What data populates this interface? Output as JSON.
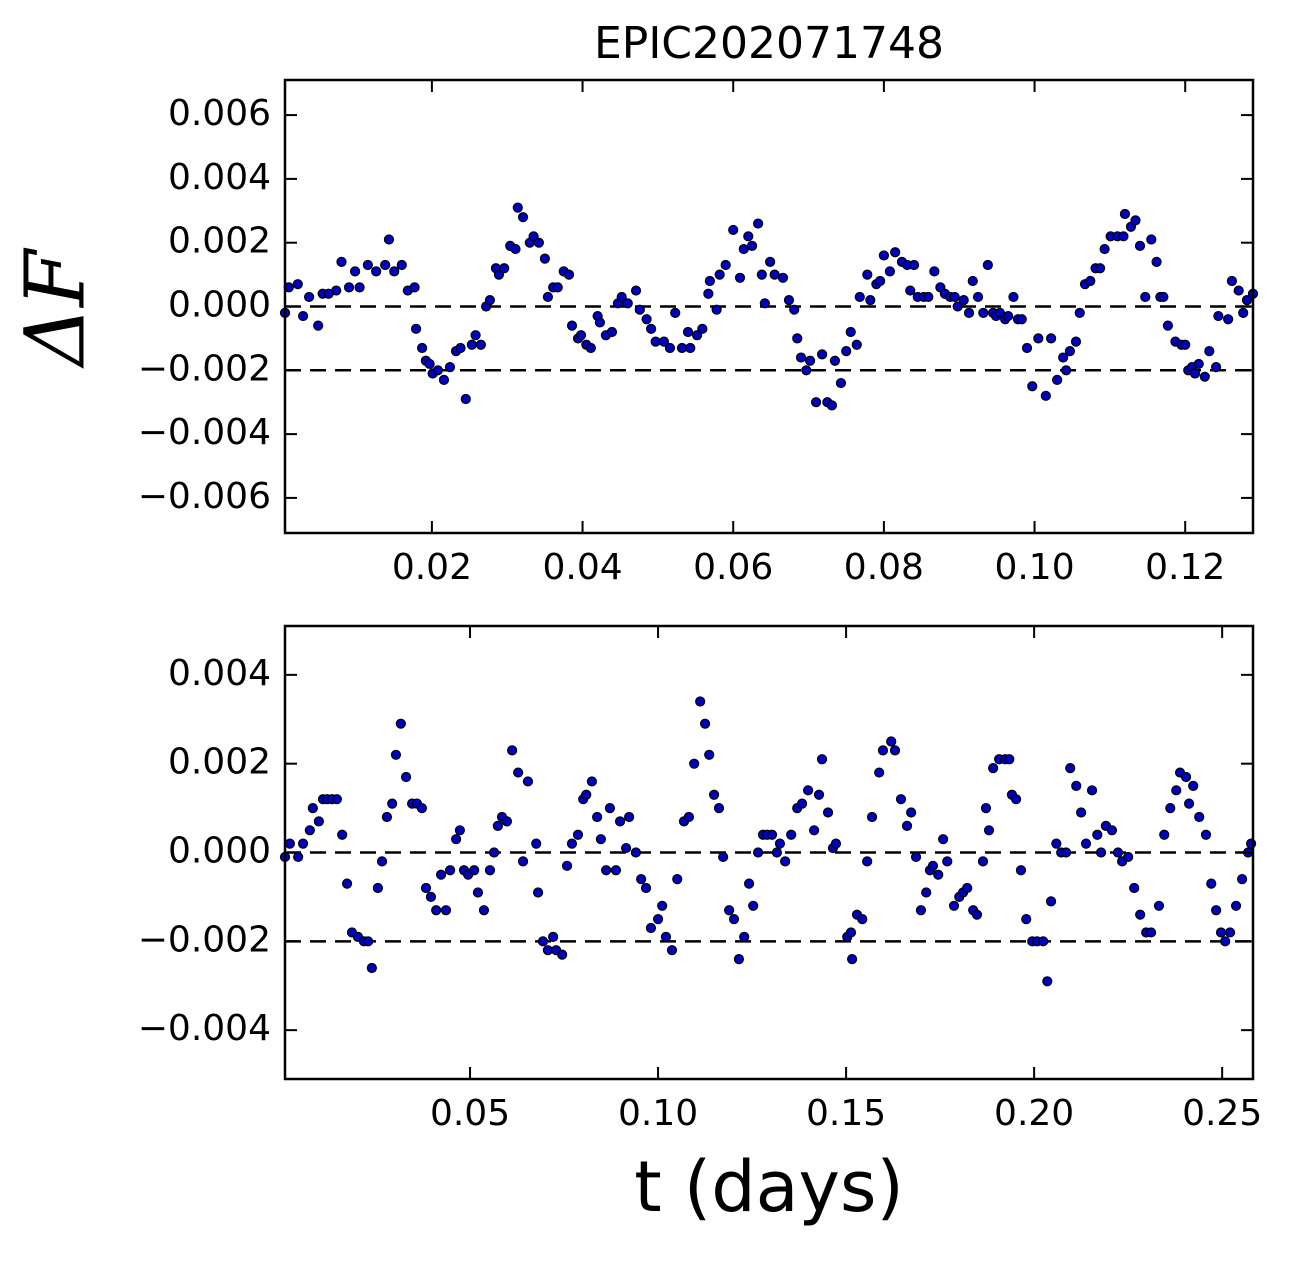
{
  "chart_data": [
    {
      "type": "scatter",
      "title": "EPIC202071748",
      "ylabel": "ΔF",
      "color": "#0000c0",
      "xlim": [
        0.0005,
        0.129
      ],
      "ylim": [
        -0.0071,
        0.0071
      ],
      "xticks": [
        0.02,
        0.04,
        0.06,
        {
          "value": 0.1,
          "label": "0.10"
        },
        0.12,
        0.08
      ],
      "yticks": [
        {
          "value": -0.006,
          "label": "−0.006"
        },
        {
          "value": -0.004,
          "label": "−0.004"
        },
        {
          "value": -0.002,
          "label": "−0.002"
        },
        {
          "value": 0,
          "label": "0.000"
        },
        0.002,
        0.004,
        0.006
      ],
      "reference_lines": [
        0,
        -0.002
      ],
      "x": [
        0.0005,
        0.001,
        0.0022,
        0.0029,
        0.0037,
        0.0049,
        0.0055,
        0.0063,
        0.0073,
        0.008,
        0.009,
        0.0098,
        0.0104,
        0.0115,
        0.0126,
        0.0138,
        0.0143,
        0.015,
        0.016,
        0.0168,
        0.0177,
        0.0179,
        0.0187,
        0.0192,
        0.0197,
        0.0201,
        0.0208,
        0.0216,
        0.0224,
        0.0232,
        0.0238,
        0.0245,
        0.0253,
        0.0258,
        0.0265,
        0.0272,
        0.0277,
        0.0285,
        0.0289,
        0.0296,
        0.0304,
        0.0311,
        0.0314,
        0.0321,
        0.033,
        0.0335,
        0.0342,
        0.035,
        0.0354,
        0.0361,
        0.0367,
        0.0375,
        0.0382,
        0.0386,
        0.0394,
        0.0398,
        0.0405,
        0.0411,
        0.042,
        0.0423,
        0.0431,
        0.0439,
        0.0447,
        0.0452,
        0.046,
        0.0471,
        0.0476,
        0.0485,
        0.0491,
        0.0497,
        0.0508,
        0.0516,
        0.0523,
        0.0532,
        0.054,
        0.0543,
        0.0552,
        0.0559,
        0.0567,
        0.0569,
        0.0578,
        0.0582,
        0.059,
        0.06,
        0.0609,
        0.0614,
        0.062,
        0.0625,
        0.0633,
        0.0638,
        0.0642,
        0.0649,
        0.0655,
        0.0666,
        0.0674,
        0.0681,
        0.0685,
        0.069,
        0.0697,
        0.0702,
        0.071,
        0.0718,
        0.0725,
        0.0731,
        0.0735,
        0.0743,
        0.075,
        0.0756,
        0.0764,
        0.0768,
        0.0778,
        0.0782,
        0.079,
        0.0795,
        0.08,
        0.0808,
        0.0815,
        0.0824,
        0.0831,
        0.0835,
        0.084,
        0.0845,
        0.0853,
        0.0859,
        0.0867,
        0.0875,
        0.0881,
        0.0888,
        0.0894,
        0.0898,
        0.0906,
        0.0913,
        0.0918,
        0.0925,
        0.0932,
        0.0938,
        0.0945,
        0.0949,
        0.0954,
        0.0961,
        0.0965,
        0.0972,
        0.0978,
        0.0983,
        0.099,
        0.0997,
        0.1005,
        0.1015,
        0.1022,
        0.103,
        0.1038,
        0.1042,
        0.1047,
        0.1055,
        0.106,
        0.1067,
        0.1074,
        0.1081,
        0.1087,
        0.1093,
        0.1101,
        0.111,
        0.1118,
        0.112,
        0.1128,
        0.1134,
        0.114,
        0.1147,
        0.1155,
        0.1162,
        0.1167,
        0.1171,
        0.1177,
        0.1187,
        0.1195,
        0.12,
        0.1204,
        0.1209,
        0.1213,
        0.1218,
        0.1226,
        0.1232,
        0.1241,
        0.1244,
        0.1257,
        0.1262,
        0.1271,
        0.1277,
        0.1282,
        0.129
      ],
      "values": [
        -0.0002,
        0.0006,
        0.0007,
        -0.0003,
        0.0003,
        -0.0006,
        0.0004,
        0.0004,
        0.0005,
        0.0014,
        0.0006,
        0.0011,
        0.0006,
        0.0013,
        0.0011,
        0.0013,
        0.0021,
        0.0011,
        0.0013,
        0.0005,
        0.0006,
        -0.0007,
        -0.0013,
        -0.0017,
        -0.0018,
        -0.0021,
        -0.002,
        -0.0023,
        -0.0019,
        -0.0014,
        -0.0013,
        -0.0029,
        -0.0012,
        -0.0009,
        -0.0012,
        0.0,
        0.0002,
        0.0012,
        0.001,
        0.0012,
        0.0019,
        0.0018,
        0.0031,
        0.0028,
        0.002,
        0.0022,
        0.002,
        0.0015,
        0.0003,
        0.0006,
        0.0006,
        0.0011,
        0.001,
        -0.0006,
        -0.001,
        -0.0009,
        -0.0012,
        -0.0013,
        -0.0003,
        -0.0005,
        -0.0009,
        -0.0008,
        0.0001,
        0.0003,
        0.0001,
        0.0005,
        -0.0001,
        -0.0004,
        -0.0007,
        -0.0011,
        -0.0011,
        -0.0013,
        -0.0002,
        -0.0013,
        -0.0008,
        -0.0013,
        -0.0009,
        -0.0007,
        0.0004,
        0.0008,
        -0.0001,
        0.001,
        0.0013,
        0.0024,
        0.0009,
        0.0018,
        0.0022,
        0.0019,
        0.0026,
        0.001,
        0.0001,
        0.0014,
        0.001,
        0.0009,
        0.0002,
        -0.0001,
        -0.001,
        -0.0016,
        -0.002,
        -0.0017,
        -0.003,
        -0.0015,
        -0.003,
        -0.0031,
        -0.0017,
        -0.0024,
        -0.0014,
        -0.0008,
        -0.0012,
        0.0003,
        0.001,
        0.0002,
        0.0007,
        0.0008,
        0.0016,
        0.0011,
        0.0017,
        0.0014,
        0.0013,
        0.0005,
        0.0013,
        0.0003,
        0.0003,
        0.0003,
        0.0011,
        0.0006,
        0.0004,
        0.0003,
        0.0003,
        0.0,
        0.0002,
        -0.0002,
        0.0008,
        0.0003,
        -0.0002,
        0.0013,
        -0.0002,
        -0.0003,
        -0.0002,
        -0.0004,
        -0.0003,
        0.0003,
        -0.0004,
        -0.0004,
        -0.0013,
        -0.0025,
        -0.001,
        -0.0028,
        -0.001,
        -0.0023,
        -0.0016,
        -0.002,
        -0.0014,
        -0.0011,
        -0.0002,
        0.0007,
        0.0008,
        0.0012,
        0.0012,
        0.0018,
        0.0022,
        0.0022,
        0.0022,
        0.0029,
        0.0025,
        0.0027,
        0.0019,
        0.0003,
        0.0021,
        0.0014,
        0.0003,
        0.0003,
        -0.0006,
        -0.0011,
        -0.0012,
        -0.0012,
        -0.002,
        -0.0019,
        -0.0021,
        -0.0018,
        -0.0022,
        -0.0014,
        -0.0019,
        -0.0003,
        -0.0004,
        0.0008,
        0.0005,
        -0.0002,
        0.0002,
        0.0004
      ]
    },
    {
      "type": "scatter",
      "xlabel": "t (days)",
      "color": "#0000c0",
      "xlim": [
        0.0008,
        0.2582
      ],
      "ylim": [
        -0.0051,
        0.0051
      ],
      "xticks": [
        0.05,
        {
          "value": 0.1,
          "label": "0.10"
        },
        0.15,
        {
          "value": 0.2,
          "label": "0.20"
        },
        0.25
      ],
      "yticks": [
        {
          "value": -0.004,
          "label": "−0.004"
        },
        {
          "value": -0.002,
          "label": "−0.002"
        },
        {
          "value": 0,
          "label": "0.000"
        },
        0.002,
        0.004
      ],
      "reference_lines": [
        0,
        -0.002
      ],
      "x": [
        0.0008,
        0.0021,
        0.0043,
        0.0056,
        0.0074,
        0.0082,
        0.0098,
        0.0109,
        0.012,
        0.0133,
        0.0146,
        0.016,
        0.0173,
        0.0186,
        0.0202,
        0.0218,
        0.0229,
        0.0239,
        0.0255,
        0.0266,
        0.0279,
        0.0293,
        0.0303,
        0.0316,
        0.033,
        0.0346,
        0.0359,
        0.0372,
        0.0383,
        0.0396,
        0.041,
        0.0423,
        0.0436,
        0.0447,
        0.0463,
        0.0473,
        0.0484,
        0.0495,
        0.0511,
        0.0521,
        0.0537,
        0.0553,
        0.0564,
        0.0574,
        0.0585,
        0.0598,
        0.0612,
        0.0628,
        0.0641,
        0.0654,
        0.0676,
        0.0681,
        0.0694,
        0.0707,
        0.0721,
        0.0729,
        0.0745,
        0.0758,
        0.0771,
        0.0787,
        0.0801,
        0.0809,
        0.0824,
        0.0838,
        0.0848,
        0.0862,
        0.0872,
        0.0888,
        0.0899,
        0.0915,
        0.0923,
        0.0941,
        0.0955,
        0.0968,
        0.0981,
        0.1,
        0.1011,
        0.1021,
        0.1037,
        0.1051,
        0.1069,
        0.1082,
        0.1096,
        0.1112,
        0.1125,
        0.1136,
        0.1149,
        0.1162,
        0.1173,
        0.1189,
        0.1202,
        0.1215,
        0.1229,
        0.1242,
        0.1253,
        0.1266,
        0.1279,
        0.129,
        0.1303,
        0.1316,
        0.1324,
        0.1338,
        0.1354,
        0.137,
        0.1383,
        0.1399,
        0.1415,
        0.1428,
        0.1436,
        0.1452,
        0.1465,
        0.1473,
        0.1503,
        0.1513,
        0.1516,
        0.1529,
        0.1543,
        0.1556,
        0.1569,
        0.1588,
        0.1598,
        0.162,
        0.163,
        0.1646,
        0.1662,
        0.1673,
        0.1686,
        0.1699,
        0.1713,
        0.1723,
        0.1731,
        0.1745,
        0.1758,
        0.1769,
        0.1787,
        0.1801,
        0.1811,
        0.1822,
        0.1838,
        0.1848,
        0.1864,
        0.1872,
        0.188,
        0.1891,
        0.1907,
        0.1923,
        0.1934,
        0.1941,
        0.1952,
        0.1965,
        0.1979,
        0.1995,
        0.2008,
        0.2024,
        0.2035,
        0.2045,
        0.2059,
        0.2072,
        0.2085,
        0.2096,
        0.2112,
        0.2125,
        0.2138,
        0.2154,
        0.2168,
        0.2178,
        0.2191,
        0.2207,
        0.2223,
        0.2234,
        0.225,
        0.2266,
        0.2282,
        0.2298,
        0.2311,
        0.2332,
        0.2346,
        0.2362,
        0.2378,
        0.2388,
        0.2404,
        0.2412,
        0.2423,
        0.2439,
        0.2457,
        0.2471,
        0.2484,
        0.2497,
        0.2508,
        0.2521,
        0.2537,
        0.2553,
        0.2569,
        0.2577
      ],
      "values": [
        -0.0001,
        0.0002,
        -0.0001,
        0.0002,
        0.0005,
        0.001,
        0.0007,
        0.0012,
        0.0012,
        0.0012,
        0.0012,
        0.0004,
        -0.0007,
        -0.0018,
        -0.0019,
        -0.002,
        -0.002,
        -0.0026,
        -0.0008,
        -0.0002,
        0.0008,
        0.0011,
        0.0022,
        0.0029,
        0.0017,
        0.0011,
        0.0011,
        0.001,
        -0.0008,
        -0.001,
        -0.0013,
        -0.0005,
        -0.0013,
        -0.0004,
        0.0003,
        0.0005,
        -0.0004,
        -0.0005,
        -0.0004,
        -0.0009,
        -0.0013,
        -0.0004,
        0.0,
        0.0006,
        0.0008,
        0.0007,
        0.0023,
        0.0018,
        -0.0002,
        0.0016,
        0.0002,
        -0.0009,
        -0.002,
        -0.0022,
        -0.0019,
        -0.0022,
        -0.0023,
        -0.0003,
        0.0002,
        0.0004,
        0.0012,
        0.0013,
        0.0016,
        0.0008,
        0.0003,
        -0.0004,
        0.001,
        -0.0004,
        0.0007,
        0.0001,
        0.0008,
        0.0,
        -0.0006,
        -0.0008,
        -0.0017,
        -0.0015,
        -0.0012,
        -0.0019,
        -0.0022,
        -0.0006,
        0.0007,
        0.0008,
        0.002,
        0.0034,
        0.0029,
        0.0022,
        0.0013,
        0.001,
        -0.0001,
        -0.0013,
        -0.0015,
        -0.0024,
        -0.0019,
        -0.0007,
        -0.0012,
        0.0,
        0.0004,
        0.0004,
        0.0004,
        0.0,
        0.0002,
        -0.0002,
        0.0004,
        0.001,
        0.0011,
        0.0014,
        0.0005,
        0.0013,
        0.0021,
        0.0009,
        0.0001,
        0.0002,
        -0.0019,
        -0.0018,
        -0.0024,
        -0.0014,
        -0.0015,
        -0.0002,
        0.0008,
        0.0018,
        0.0023,
        0.0025,
        0.0023,
        0.0012,
        0.0006,
        0.0009,
        -0.0001,
        -0.0013,
        -0.0009,
        -0.0004,
        -0.0003,
        -0.0005,
        0.0003,
        -0.0002,
        -0.0012,
        -0.001,
        -0.0009,
        -0.0008,
        -0.0013,
        -0.0014,
        -0.0002,
        0.001,
        0.0005,
        0.0019,
        0.0021,
        0.0021,
        0.0021,
        0.0013,
        0.0012,
        -0.0004,
        -0.0015,
        -0.002,
        -0.002,
        -0.002,
        -0.0029,
        -0.0011,
        0.0002,
        0.0,
        0.0,
        0.0019,
        0.0015,
        0.0009,
        0.0002,
        0.0014,
        0.0004,
        0.0,
        0.0006,
        0.0005,
        0.0,
        -0.0002,
        -0.0001,
        -0.0008,
        -0.0014,
        -0.0018,
        -0.0018,
        -0.0012,
        0.0004,
        0.001,
        0.0014,
        0.0018,
        0.0017,
        0.0011,
        0.0015,
        0.0008,
        0.0004,
        -0.0007,
        -0.0013,
        -0.0018,
        -0.002,
        -0.0018,
        -0.0012,
        -0.0006,
        0.0,
        0.0002
      ]
    }
  ]
}
